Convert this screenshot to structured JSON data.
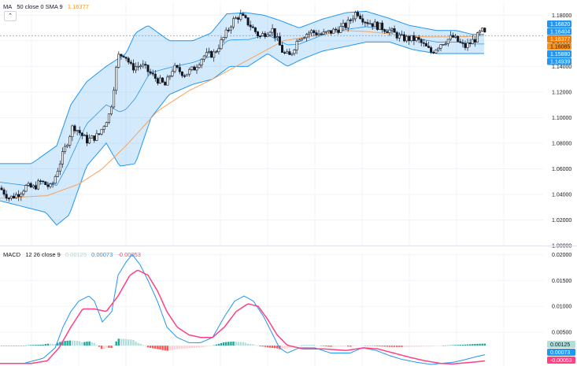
{
  "legend_top": {
    "name": "MA",
    "params": "50 close 0 SMA 9",
    "value": "1.16377",
    "value_color": "#f7931a"
  },
  "legend_bottom": {
    "name": "MACD",
    "params": "12 26 close 9",
    "hist_value": "0.00125",
    "macd_value": "0.00073",
    "signal_value": "-0.00053"
  },
  "colors": {
    "up": "#ffffff",
    "down": "#131722",
    "band": "#2196f3",
    "band_fill": "#2196f333",
    "ma": "#f7a35c",
    "macd": "#2196f3",
    "signal": "#ff4081",
    "hist_up_strong": "#26a69a",
    "hist_up_weak": "#b2dfdb",
    "hist_down_strong": "#ff5252",
    "hist_down_weak": "#ffcdd2"
  },
  "chart_data": [
    {
      "type": "candlestick",
      "title": "",
      "y_axis_ticks": [
        "1.18000",
        "1.16000",
        "1.14000",
        "1.12000",
        "1.10000",
        "1.08000",
        "1.06000",
        "1.04000",
        "1.02000",
        "1.00000"
      ],
      "ylim": [
        1.0,
        1.19
      ],
      "price_badges": [
        {
          "value": "1.16820",
          "bg": "#2196f3",
          "fg": "#ffffff"
        },
        {
          "value": "1.16404",
          "bg": "#2196f3",
          "fg": "#ffffff"
        },
        {
          "value": "1.16377",
          "bg": "#f57c00",
          "fg": "#ffffff"
        },
        {
          "value": "1.16085",
          "bg": "#f7931a",
          "fg": "#131722"
        },
        {
          "value": "1.15880",
          "bg": "#2196f3",
          "fg": "#ffffff"
        },
        {
          "value": "1.14939",
          "bg": "#2196f3",
          "fg": "#ffffff"
        }
      ],
      "close_waypoints": [
        [
          0,
          1.045
        ],
        [
          12,
          1.037
        ],
        [
          22,
          1.04
        ],
        [
          33,
          1.046
        ],
        [
          42,
          1.045
        ],
        [
          52,
          1.05
        ],
        [
          65,
          1.045
        ],
        [
          78,
          1.068
        ],
        [
          93,
          1.094
        ],
        [
          110,
          1.082
        ],
        [
          125,
          1.086
        ],
        [
          140,
          1.104
        ],
        [
          150,
          1.148
        ],
        [
          158,
          1.15
        ],
        [
          167,
          1.139
        ],
        [
          180,
          1.141
        ],
        [
          195,
          1.132
        ],
        [
          210,
          1.125
        ],
        [
          220,
          1.139
        ],
        [
          235,
          1.134
        ],
        [
          246,
          1.138
        ],
        [
          258,
          1.148
        ],
        [
          272,
          1.15
        ],
        [
          285,
          1.163
        ],
        [
          295,
          1.175
        ],
        [
          305,
          1.18
        ],
        [
          318,
          1.172
        ],
        [
          330,
          1.163
        ],
        [
          345,
          1.17
        ],
        [
          360,
          1.15
        ],
        [
          368,
          1.148
        ],
        [
          380,
          1.163
        ],
        [
          395,
          1.167
        ],
        [
          410,
          1.165
        ],
        [
          425,
          1.168
        ],
        [
          440,
          1.172
        ],
        [
          453,
          1.183
        ],
        [
          463,
          1.176
        ],
        [
          478,
          1.172
        ],
        [
          495,
          1.168
        ],
        [
          510,
          1.162
        ],
        [
          530,
          1.161
        ],
        [
          548,
          1.151
        ],
        [
          560,
          1.158
        ],
        [
          575,
          1.163
        ],
        [
          590,
          1.155
        ],
        [
          605,
          1.162
        ],
        [
          612,
          1.168
        ],
        [
          617,
          1.164
        ]
      ],
      "bollinger_upper": [
        [
          0,
          1.064
        ],
        [
          40,
          1.064
        ],
        [
          72,
          1.078
        ],
        [
          90,
          1.11
        ],
        [
          110,
          1.128
        ],
        [
          135,
          1.14
        ],
        [
          160,
          1.15
        ],
        [
          172,
          1.166
        ],
        [
          188,
          1.172
        ],
        [
          215,
          1.16
        ],
        [
          245,
          1.16
        ],
        [
          268,
          1.166
        ],
        [
          288,
          1.181
        ],
        [
          312,
          1.182
        ],
        [
          335,
          1.18
        ],
        [
          355,
          1.176
        ],
        [
          380,
          1.17
        ],
        [
          410,
          1.177
        ],
        [
          440,
          1.182
        ],
        [
          465,
          1.183
        ],
        [
          492,
          1.178
        ],
        [
          520,
          1.172
        ],
        [
          555,
          1.168
        ],
        [
          580,
          1.168
        ],
        [
          600,
          1.165
        ],
        [
          617,
          1.165
        ]
      ],
      "bollinger_lower": [
        [
          0,
          1.035
        ],
        [
          32,
          1.03
        ],
        [
          58,
          1.026
        ],
        [
          72,
          1.016
        ],
        [
          88,
          1.024
        ],
        [
          110,
          1.062
        ],
        [
          135,
          1.08
        ],
        [
          152,
          1.062
        ],
        [
          172,
          1.064
        ],
        [
          192,
          1.1
        ],
        [
          215,
          1.118
        ],
        [
          245,
          1.126
        ],
        [
          270,
          1.13
        ],
        [
          292,
          1.14
        ],
        [
          315,
          1.14
        ],
        [
          340,
          1.15
        ],
        [
          365,
          1.14
        ],
        [
          385,
          1.146
        ],
        [
          410,
          1.152
        ],
        [
          435,
          1.155
        ],
        [
          465,
          1.159
        ],
        [
          495,
          1.159
        ],
        [
          525,
          1.153
        ],
        [
          555,
          1.15
        ],
        [
          590,
          1.15
        ],
        [
          617,
          1.15
        ]
      ],
      "moving_average": [
        [
          0,
          1.037
        ],
        [
          60,
          1.039
        ],
        [
          100,
          1.048
        ],
        [
          130,
          1.06
        ],
        [
          160,
          1.078
        ],
        [
          200,
          1.105
        ],
        [
          240,
          1.121
        ],
        [
          270,
          1.13
        ],
        [
          300,
          1.14
        ],
        [
          330,
          1.15
        ],
        [
          360,
          1.16
        ],
        [
          400,
          1.164
        ],
        [
          440,
          1.168
        ],
        [
          470,
          1.167
        ],
        [
          500,
          1.165
        ],
        [
          540,
          1.163
        ],
        [
          580,
          1.163
        ],
        [
          617,
          1.164
        ]
      ]
    },
    {
      "type": "macd",
      "title": "",
      "y_axis_ticks": [
        "0.02000",
        "0.01500",
        "0.01000",
        "0.00500"
      ],
      "ylim": [
        -0.0015,
        0.0202
      ],
      "value_badges": [
        {
          "value": "0.00125",
          "bg": "#b2dfdb",
          "fg": "#131722"
        },
        {
          "value": "0.00073",
          "bg": "#2196f3",
          "fg": "#ffffff"
        },
        {
          "value": "-0.00053",
          "bg": "#ff4081",
          "fg": "#ffffff"
        }
      ],
      "macd_line": [
        [
          0,
          -0.001
        ],
        [
          30,
          -0.001
        ],
        [
          55,
          0.0
        ],
        [
          70,
          0.002
        ],
        [
          80,
          0.006
        ],
        [
          90,
          0.009
        ],
        [
          100,
          0.011
        ],
        [
          113,
          0.012
        ],
        [
          120,
          0.011
        ],
        [
          130,
          0.007
        ],
        [
          142,
          0.009
        ],
        [
          150,
          0.016
        ],
        [
          160,
          0.0185
        ],
        [
          168,
          0.02
        ],
        [
          178,
          0.018
        ],
        [
          188,
          0.015
        ],
        [
          200,
          0.011
        ],
        [
          212,
          0.006
        ],
        [
          225,
          0.004
        ],
        [
          240,
          0.003
        ],
        [
          255,
          0.003
        ],
        [
          270,
          0.004
        ],
        [
          285,
          0.008
        ],
        [
          298,
          0.011
        ],
        [
          310,
          0.012
        ],
        [
          322,
          0.011
        ],
        [
          335,
          0.008
        ],
        [
          345,
          0.005
        ],
        [
          355,
          0.002
        ],
        [
          365,
          0.001
        ],
        [
          380,
          0.002
        ],
        [
          400,
          0.002
        ],
        [
          420,
          0.001
        ],
        [
          445,
          0.001
        ],
        [
          460,
          0.002
        ],
        [
          478,
          0.0015
        ],
        [
          495,
          0.0005
        ],
        [
          510,
          -0.0002
        ],
        [
          530,
          -0.0008
        ],
        [
          548,
          -0.0012
        ],
        [
          560,
          -0.001
        ],
        [
          575,
          -0.0008
        ],
        [
          590,
          -0.0003
        ],
        [
          605,
          0.0003
        ],
        [
          617,
          0.0007
        ]
      ],
      "signal_line": [
        [
          0,
          -0.001
        ],
        [
          40,
          -0.001
        ],
        [
          60,
          -0.0005
        ],
        [
          75,
          0.002
        ],
        [
          90,
          0.006
        ],
        [
          105,
          0.0095
        ],
        [
          120,
          0.0095
        ],
        [
          135,
          0.009
        ],
        [
          150,
          0.012
        ],
        [
          165,
          0.016
        ],
        [
          175,
          0.017
        ],
        [
          188,
          0.016
        ],
        [
          200,
          0.013
        ],
        [
          212,
          0.009
        ],
        [
          225,
          0.006
        ],
        [
          240,
          0.0045
        ],
        [
          255,
          0.004
        ],
        [
          270,
          0.004
        ],
        [
          285,
          0.006
        ],
        [
          300,
          0.009
        ],
        [
          315,
          0.0105
        ],
        [
          328,
          0.01
        ],
        [
          340,
          0.0075
        ],
        [
          352,
          0.0045
        ],
        [
          365,
          0.0025
        ],
        [
          385,
          0.0018
        ],
        [
          410,
          0.0018
        ],
        [
          440,
          0.0015
        ],
        [
          462,
          0.002
        ],
        [
          480,
          0.0018
        ],
        [
          500,
          0.001
        ],
        [
          520,
          0.0002
        ],
        [
          540,
          -0.0005
        ],
        [
          560,
          -0.001
        ],
        [
          575,
          -0.0011
        ],
        [
          590,
          -0.0009
        ],
        [
          605,
          -0.0007
        ],
        [
          617,
          -0.0005
        ]
      ]
    }
  ]
}
